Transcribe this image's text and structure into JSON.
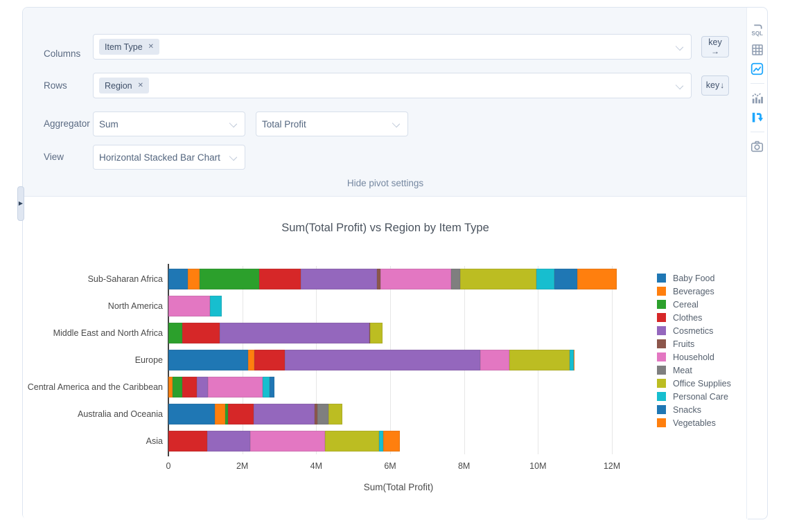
{
  "pivot_settings": {
    "columns": {
      "label": "Columns",
      "tag": "Item Type"
    },
    "rows": {
      "label": "Rows",
      "tag": "Region"
    },
    "aggregator": {
      "label": "Aggregator",
      "selected": "Sum",
      "field": "Total Profit"
    },
    "view": {
      "label": "View",
      "selected": "Horizontal Stacked Bar Chart"
    },
    "key_buttons": {
      "columns": {
        "label": "key",
        "arrow": "→"
      },
      "rows": {
        "label": "key",
        "arrow": "↓"
      }
    },
    "hide_link": "Hide pivot settings"
  },
  "toolbar": {
    "icons": [
      {
        "name": "sql-lab-icon",
        "label": "SQL",
        "active": false
      },
      {
        "name": "data-table-icon",
        "active": false
      },
      {
        "name": "chart-image-icon",
        "active": true
      },
      {
        "name": "combo-chart-icon",
        "active": false
      },
      {
        "name": "pivot-icon",
        "active": true
      },
      {
        "name": "camera-icon",
        "active": false
      }
    ],
    "active_color": "#1ea7fd",
    "inactive_color": "#8e9cb0"
  },
  "chart_data": {
    "type": "bar",
    "orientation": "horizontal",
    "stacked": true,
    "title": "Sum(Total Profit) vs Region by Item Type",
    "xlabel": "Sum(Total Profit)",
    "value_unit": "millions",
    "xlim": [
      0,
      12.45
    ],
    "grid": true,
    "legend_position": "right",
    "categories": [
      "Sub-Saharan Africa",
      "North America",
      "Middle East and North Africa",
      "Europe",
      "Central America and the Caribbean",
      "Australia and Oceania",
      "Asia"
    ],
    "x_ticks": [
      "0",
      "2M",
      "4M",
      "6M",
      "8M",
      "10M",
      "12M"
    ],
    "x_tick_values": [
      0,
      2,
      4,
      6,
      8,
      10,
      12
    ],
    "series": [
      {
        "name": "Baby Food",
        "color": "#1f77b4",
        "values": [
          0.52,
          0,
          0,
          2.16,
          0,
          1.25,
          0
        ]
      },
      {
        "name": "Beverages",
        "color": "#ff7f0e",
        "values": [
          0.32,
          0,
          0,
          0.17,
          0.11,
          0.29,
          0
        ]
      },
      {
        "name": "Cereal",
        "color": "#2ca02c",
        "values": [
          1.61,
          0,
          0.37,
          0,
          0.27,
          0.08,
          0
        ]
      },
      {
        "name": "Clothes",
        "color": "#d62728",
        "values": [
          1.14,
          0,
          1.02,
          0.82,
          0.39,
          0.69,
          1.05
        ]
      },
      {
        "name": "Cosmetics",
        "color": "#9467bd",
        "values": [
          2.05,
          0,
          4.04,
          5.28,
          0.29,
          1.65,
          1.17
        ]
      },
      {
        "name": "Fruits",
        "color": "#8c564b",
        "values": [
          0.09,
          0,
          0.03,
          0,
          0,
          0.08,
          0
        ]
      },
      {
        "name": "Household",
        "color": "#e377c2",
        "values": [
          1.92,
          1.13,
          0,
          0.79,
          1.49,
          0,
          2.02
        ]
      },
      {
        "name": "Meat",
        "color": "#7f7f7f",
        "values": [
          0.25,
          0,
          0,
          0,
          0,
          0.3,
          0
        ]
      },
      {
        "name": "Office Supplies",
        "color": "#bcbd22",
        "values": [
          2.05,
          0,
          0.34,
          1.63,
          0,
          0.37,
          1.46
        ]
      },
      {
        "name": "Personal Care",
        "color": "#17becf",
        "values": [
          0.5,
          0.32,
          0,
          0.11,
          0.19,
          0,
          0.12
        ]
      },
      {
        "name": "Snacks",
        "color": "#1f77b4",
        "values": [
          0.62,
          0,
          0,
          0,
          0.13,
          0,
          0
        ]
      },
      {
        "name": "Vegetables",
        "color": "#ff7f0e",
        "values": [
          1.06,
          0,
          0,
          0.03,
          0,
          0,
          0.44
        ]
      }
    ]
  }
}
